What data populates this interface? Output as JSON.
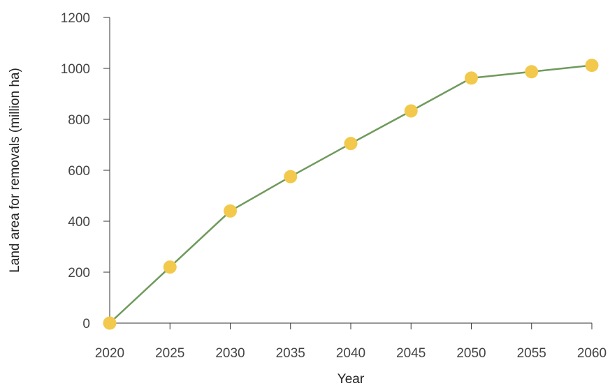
{
  "chart_data": {
    "type": "line",
    "title": "",
    "xlabel": "Year",
    "ylabel": "Land area for removals (million ha)",
    "x": [
      2020,
      2025,
      2030,
      2035,
      2040,
      2045,
      2050,
      2055,
      2060
    ],
    "series": [
      {
        "values": [
          0,
          220,
          440,
          575,
          705,
          833,
          962,
          987,
          1012
        ]
      }
    ],
    "xlim": [
      2020,
      2060
    ],
    "ylim": [
      0,
      1200
    ],
    "xticks": [
      "2020",
      "2025",
      "2030",
      "2035",
      "2040",
      "2045",
      "2050",
      "2055",
      "2060"
    ],
    "yticks": [
      "0",
      "200",
      "400",
      "600",
      "800",
      "1000",
      "1200"
    ],
    "grid": false,
    "legend": "none",
    "colors": {
      "line": "#6f9a5c",
      "marker": "#f2c94c"
    }
  }
}
